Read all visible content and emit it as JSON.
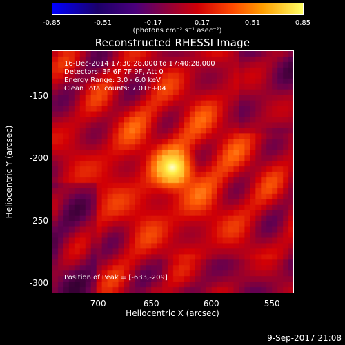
{
  "chart_data": {
    "type": "heatmap",
    "title": "Reconstructed RHESSI Image",
    "colorbar": {
      "ticks": [
        "-0.85",
        "-0.51",
        "-0.17",
        "0.17",
        "0.51",
        "0.85"
      ],
      "unit_label": "(photons cm⁻² s⁻¹ asec⁻²)",
      "range": [
        -0.85,
        0.85
      ]
    },
    "xlabel": "Heliocentric X (arcsec)",
    "ylabel": "Heliocentric Y (arcsec)",
    "xlim": [
      -730,
      -535
    ],
    "ylim": [
      -310,
      -115
    ],
    "x_ticks": [
      "-700",
      "-650",
      "-600",
      "-550"
    ],
    "y_ticks": [
      "-150",
      "-200",
      "-250",
      "-300"
    ],
    "annotations": {
      "line1": "16-Dec-2014 17:30:28.000 to 17:40:28.000",
      "line2": "Detectors: 3F 6F 7F 9F, Att 0",
      "line3": "Energy Range: 3.0 - 6.0 keV",
      "line4": "Clean     Total counts: 7.01E+04"
    },
    "peak_text": "Position of Peak = [-633,-209]",
    "peak_position": [
      -633,
      -209
    ]
  },
  "timestamp": "9-Sep-2017 21:08"
}
